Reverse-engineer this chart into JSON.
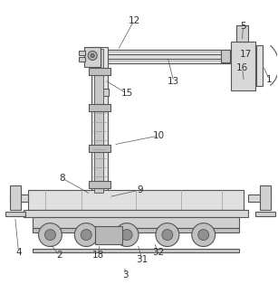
{
  "background_color": "#ffffff",
  "line_color": "#555555",
  "lw": 0.8,
  "fig_width": 3.07,
  "fig_height": 3.25,
  "dpi": 100
}
